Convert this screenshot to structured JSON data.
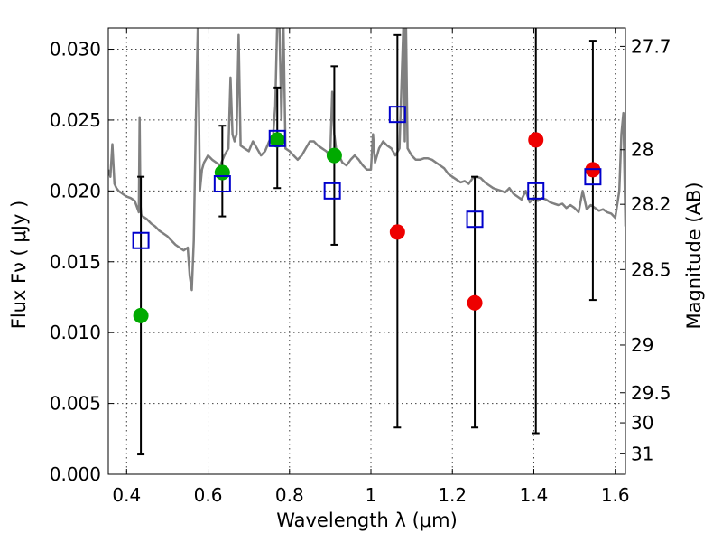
{
  "chart_data": {
    "type": "scatter",
    "xlabel": "Wavelength  λ (μm)",
    "ylabel": "Flux  Fν  ( μJy )",
    "ylabel_right": "Magnitude (AB)",
    "xlim": [
      0.355,
      1.625
    ],
    "ylim": [
      0.0,
      0.0315
    ],
    "grid": true,
    "x_ticks": [
      {
        "value": 0.4,
        "label": "0.4"
      },
      {
        "value": 0.6,
        "label": "0.6"
      },
      {
        "value": 0.8,
        "label": "0.8"
      },
      {
        "value": 1.0,
        "label": "1"
      },
      {
        "value": 1.2,
        "label": "1.2"
      },
      {
        "value": 1.4,
        "label": "1.4"
      },
      {
        "value": 1.6,
        "label": "1.6"
      }
    ],
    "y_ticks": [
      {
        "value": 0.0,
        "label": "0.000"
      },
      {
        "value": 0.005,
        "label": "0.005"
      },
      {
        "value": 0.01,
        "label": "0.010"
      },
      {
        "value": 0.015,
        "label": "0.015"
      },
      {
        "value": 0.02,
        "label": "0.020"
      },
      {
        "value": 0.025,
        "label": "0.025"
      },
      {
        "value": 0.03,
        "label": "0.030"
      }
    ],
    "right_ticks": [
      {
        "mag": 27.7,
        "label": "27.7"
      },
      {
        "mag": 28.0,
        "label": "28"
      },
      {
        "mag": 28.2,
        "label": "28.2"
      },
      {
        "mag": 28.5,
        "label": "28.5"
      },
      {
        "mag": 29.0,
        "label": "29"
      },
      {
        "mag": 29.5,
        "label": "29.5"
      },
      {
        "mag": 30.0,
        "label": "30"
      },
      {
        "mag": 31.0,
        "label": "31"
      }
    ],
    "series": [
      {
        "kind": "line",
        "color": "#808080",
        "x": [
          0.355,
          0.36,
          0.365,
          0.37,
          0.375,
          0.38,
          0.39,
          0.4,
          0.41,
          0.42,
          0.43,
          0.432,
          0.434,
          0.436,
          0.44,
          0.45,
          0.46,
          0.47,
          0.48,
          0.49,
          0.5,
          0.51,
          0.52,
          0.53,
          0.54,
          0.55,
          0.555,
          0.56,
          0.565,
          0.57,
          0.575,
          0.58,
          0.585,
          0.59,
          0.6,
          0.61,
          0.62,
          0.63,
          0.64,
          0.65,
          0.655,
          0.66,
          0.665,
          0.67,
          0.675,
          0.68,
          0.69,
          0.7,
          0.71,
          0.72,
          0.73,
          0.74,
          0.75,
          0.76,
          0.765,
          0.77,
          0.775,
          0.78,
          0.785,
          0.79,
          0.8,
          0.81,
          0.82,
          0.83,
          0.84,
          0.85,
          0.86,
          0.87,
          0.88,
          0.89,
          0.9,
          0.905,
          0.91,
          0.915,
          0.92,
          0.93,
          0.94,
          0.95,
          0.96,
          0.97,
          0.98,
          0.99,
          1.0,
          1.005,
          1.01,
          1.02,
          1.03,
          1.04,
          1.05,
          1.06,
          1.07,
          1.08,
          1.083,
          1.086,
          1.09,
          1.1,
          1.11,
          1.12,
          1.13,
          1.14,
          1.15,
          1.16,
          1.17,
          1.18,
          1.19,
          1.2,
          1.21,
          1.22,
          1.23,
          1.24,
          1.25,
          1.26,
          1.27,
          1.28,
          1.29,
          1.3,
          1.31,
          1.32,
          1.33,
          1.34,
          1.35,
          1.36,
          1.37,
          1.38,
          1.39,
          1.4,
          1.41,
          1.42,
          1.43,
          1.44,
          1.45,
          1.46,
          1.47,
          1.48,
          1.49,
          1.5,
          1.51,
          1.52,
          1.53,
          1.54,
          1.55,
          1.56,
          1.57,
          1.58,
          1.59,
          1.6,
          1.61,
          1.615,
          1.62,
          1.625
        ],
        "y": [
          0.0215,
          0.021,
          0.0233,
          0.0205,
          0.0202,
          0.02,
          0.0198,
          0.0196,
          0.0195,
          0.0193,
          0.0185,
          0.0252,
          0.019,
          0.0183,
          0.0182,
          0.018,
          0.0177,
          0.0175,
          0.0172,
          0.017,
          0.0168,
          0.0165,
          0.0162,
          0.016,
          0.0158,
          0.016,
          0.014,
          0.013,
          0.0165,
          0.025,
          0.032,
          0.02,
          0.0215,
          0.022,
          0.0225,
          0.0222,
          0.022,
          0.0218,
          0.0225,
          0.023,
          0.028,
          0.024,
          0.0235,
          0.024,
          0.031,
          0.0232,
          0.023,
          0.0228,
          0.0235,
          0.023,
          0.0225,
          0.0228,
          0.0235,
          0.024,
          0.026,
          0.032,
          0.032,
          0.025,
          0.032,
          0.023,
          0.0228,
          0.0225,
          0.0222,
          0.0225,
          0.023,
          0.0235,
          0.0235,
          0.0232,
          0.023,
          0.0228,
          0.0225,
          0.027,
          0.024,
          0.0228,
          0.0226,
          0.022,
          0.0218,
          0.0222,
          0.0225,
          0.0222,
          0.0218,
          0.0215,
          0.0215,
          0.024,
          0.022,
          0.023,
          0.0235,
          0.0232,
          0.023,
          0.0225,
          0.023,
          0.032,
          0.0235,
          0.032,
          0.023,
          0.0225,
          0.0222,
          0.0222,
          0.0223,
          0.0223,
          0.0222,
          0.022,
          0.0218,
          0.0216,
          0.0212,
          0.021,
          0.0208,
          0.0206,
          0.0207,
          0.0205,
          0.0209,
          0.021,
          0.0209,
          0.0206,
          0.0204,
          0.0202,
          0.0201,
          0.02,
          0.0199,
          0.0202,
          0.0198,
          0.0196,
          0.0194,
          0.02,
          0.0192,
          0.0195,
          0.0193,
          0.0195,
          0.0194,
          0.0192,
          0.0191,
          0.019,
          0.0191,
          0.0188,
          0.019,
          0.0188,
          0.0185,
          0.02,
          0.0187,
          0.019,
          0.0188,
          0.0186,
          0.0187,
          0.0185,
          0.0184,
          0.0181,
          0.02,
          0.024,
          0.0255,
          0.0175
        ]
      },
      {
        "kind": "points",
        "marker": "square",
        "color": "#0000cc",
        "x": [
          0.435,
          0.635,
          0.77,
          0.905,
          1.065,
          1.255,
          1.405,
          1.545
        ],
        "y": [
          0.0165,
          0.0205,
          0.0237,
          0.02,
          0.0254,
          0.018,
          0.02,
          0.021
        ]
      },
      {
        "kind": "points",
        "marker": "circle",
        "color": "#00aa00",
        "x": [
          0.435,
          0.635,
          0.77,
          0.91
        ],
        "y": [
          0.0112,
          0.0213,
          0.0236,
          0.0225
        ]
      },
      {
        "kind": "points",
        "marker": "circle",
        "color": "#ee0000",
        "x": [
          1.065,
          1.255,
          1.405,
          1.545
        ],
        "y": [
          0.0171,
          0.0121,
          0.0236,
          0.0215
        ]
      },
      {
        "kind": "errorbars",
        "color": "#000000",
        "x": [
          0.435,
          0.635,
          0.77,
          0.91,
          1.065,
          1.255,
          1.405,
          1.545
        ],
        "low": [
          0.0014,
          0.0182,
          0.0202,
          0.0162,
          0.0033,
          0.0033,
          0.0029,
          0.0123
        ],
        "high": [
          0.021,
          0.0246,
          0.0273,
          0.0288,
          0.031,
          0.021,
          0.032,
          0.0306
        ]
      }
    ]
  }
}
